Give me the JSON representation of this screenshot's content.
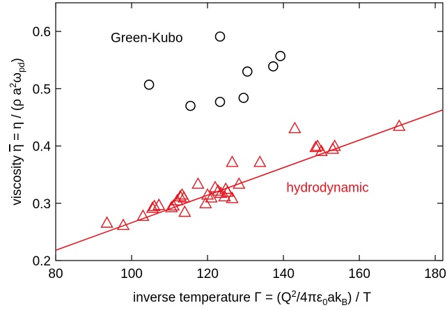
{
  "chart_data": {
    "type": "scatter",
    "xlabel": "inverse temperature Γ = (Q²/4πε₀ak_B) / T",
    "ylabel": "viscosity η̄ = η / (ρ a²ω_pd)",
    "xlim": [
      80,
      182
    ],
    "ylim": [
      0.2,
      0.65
    ],
    "x_ticks": [
      80,
      100,
      120,
      140,
      160,
      180
    ],
    "y_ticks": [
      0.2,
      0.3,
      0.4,
      0.5,
      0.6
    ],
    "x_tick_labels": [
      "80",
      "100",
      "120",
      "140",
      "160",
      "180"
    ],
    "y_tick_labels": [
      "0.2",
      "0.3",
      "0.4",
      "0.5",
      "0.6"
    ],
    "grid": false,
    "series": [
      {
        "name": "Green-Kubo",
        "marker": "circle",
        "color": "#000000",
        "points": [
          [
            104.6,
            0.507
          ],
          [
            115.5,
            0.47
          ],
          [
            123.3,
            0.591
          ],
          [
            123.3,
            0.477
          ],
          [
            129.5,
            0.484
          ],
          [
            130.5,
            0.53
          ],
          [
            137.3,
            0.539
          ],
          [
            139.2,
            0.557
          ]
        ]
      },
      {
        "name": "hydrodynamic",
        "marker": "triangle",
        "color": "#e8141e",
        "points": [
          [
            93.5,
            0.266
          ],
          [
            97.8,
            0.262
          ],
          [
            103.0,
            0.278
          ],
          [
            105.5,
            0.292
          ],
          [
            106.0,
            0.295
          ],
          [
            107.2,
            0.297
          ],
          [
            110.5,
            0.293
          ],
          [
            111.0,
            0.296
          ],
          [
            112.0,
            0.305
          ],
          [
            112.8,
            0.312
          ],
          [
            113.3,
            0.315
          ],
          [
            113.8,
            0.31
          ],
          [
            114.0,
            0.285
          ],
          [
            117.5,
            0.334
          ],
          [
            119.5,
            0.3
          ],
          [
            120.0,
            0.315
          ],
          [
            121.0,
            0.31
          ],
          [
            122.0,
            0.328
          ],
          [
            122.8,
            0.322
          ],
          [
            123.5,
            0.318
          ],
          [
            124.5,
            0.312
          ],
          [
            124.8,
            0.325
          ],
          [
            125.3,
            0.32
          ],
          [
            126.5,
            0.309
          ],
          [
            126.5,
            0.372
          ],
          [
            128.3,
            0.334
          ],
          [
            133.8,
            0.372
          ],
          [
            143.0,
            0.431
          ],
          [
            148.5,
            0.398
          ],
          [
            149.0,
            0.4
          ],
          [
            150.0,
            0.391
          ],
          [
            153.0,
            0.395
          ],
          [
            153.5,
            0.4
          ],
          [
            170.5,
            0.435
          ]
        ]
      }
    ],
    "fit_line": {
      "color": "#e8141e",
      "x": [
        80,
        182
      ],
      "y": [
        0.218,
        0.463
      ]
    },
    "annotations": [
      {
        "text": "Green-Kubo",
        "x": 94.5,
        "y": 0.581,
        "color": "#000000"
      },
      {
        "text": "hydrodynamic",
        "x": 140.8,
        "y": 0.32,
        "color": "#e8141e"
      }
    ]
  }
}
